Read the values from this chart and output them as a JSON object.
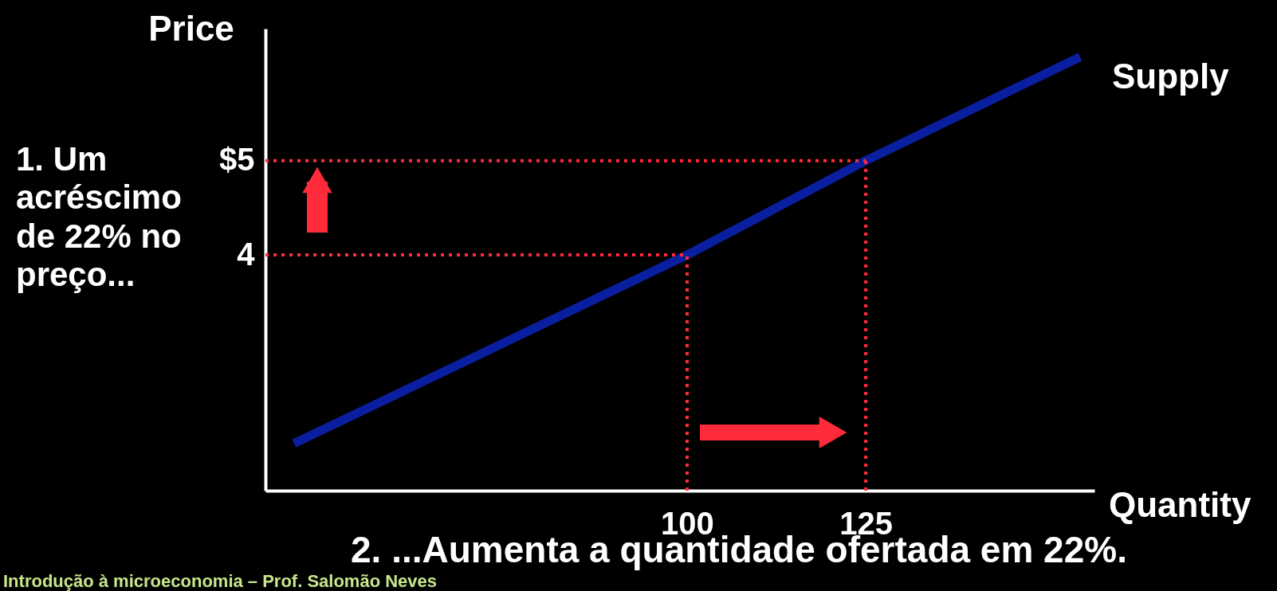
{
  "chart_data": {
    "type": "line",
    "x": [
      45,
      100,
      125,
      155
    ],
    "series": [
      {
        "name": "Supply",
        "color": "#0a1fa0",
        "values": [
          2.0,
          4,
          5,
          6.1
        ]
      }
    ],
    "xlabel": "Quantity",
    "ylabel": "Price",
    "xlim": [
      41,
      157
    ],
    "ylim": [
      1.5,
      6.4
    ],
    "xticks": [
      100,
      125
    ],
    "yticks": [
      4,
      {
        "value": 5,
        "label": "$5"
      }
    ],
    "ref_lines": [
      {
        "axis": "y",
        "value": 4,
        "color": "#ff2a3a",
        "line_style": "dotted"
      },
      {
        "axis": "y",
        "value": 5,
        "color": "#ff2a3a",
        "line_style": "dotted"
      },
      {
        "axis": "x",
        "value": 100,
        "color": "#ff2a3a",
        "line_style": "dotted"
      },
      {
        "axis": "x",
        "value": 125,
        "color": "#ff2a3a",
        "line_style": "dotted"
      }
    ],
    "annotations": [
      "1. Um acréscimo de 22% no preço...",
      "2. ...Aumenta a quantidade ofertada em 22%.",
      "Introdução à microeconomia – Prof. Salomão Neves"
    ],
    "grid": false,
    "marker": "none",
    "line_style": "solid"
  }
}
